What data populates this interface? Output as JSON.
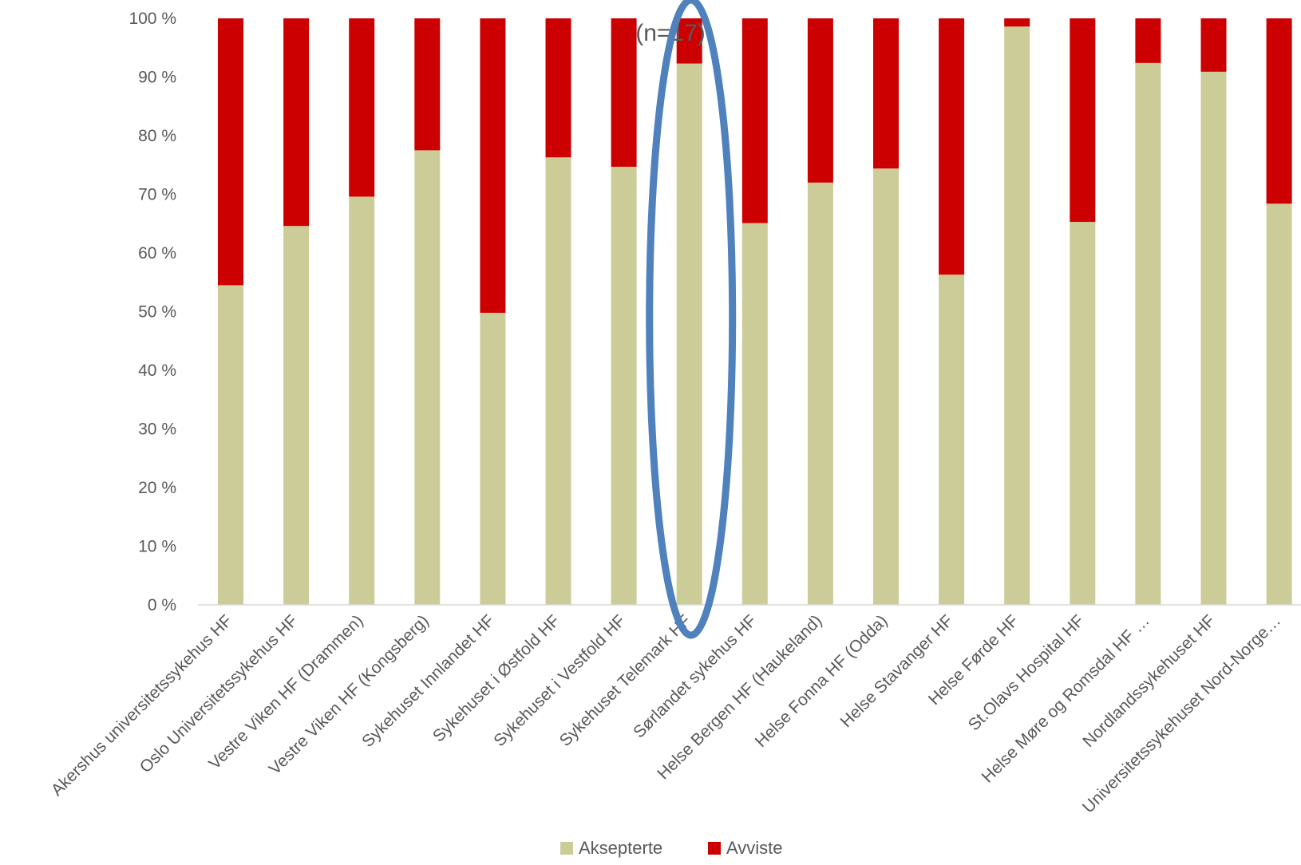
{
  "chart_data": {
    "type": "bar",
    "stacked": true,
    "percent_stacked": true,
    "subtitle": "(n=17)",
    "categories": [
      "Akershus universitetssykehus HF",
      "Oslo Universitetssykehus HF",
      "Vestre Viken HF (Drammen)",
      "Vestre Viken HF (Kongsberg)",
      "Sykehuset Innlandet HF",
      "Sykehuset i Østfold HF",
      "Sykehuset i Vestfold HF",
      "Sykehuset Telemark HF",
      "Sørlandet sykehus HF",
      "Helse Bergen HF (Haukeland)",
      "Helse Fonna HF (Odda)",
      "Helse Stavanger HF",
      "Helse Førde HF",
      "St.Olavs Hospital HF",
      "Helse Møre og Romsdal HF …",
      "Nordlandssykehuset HF",
      "Universitetssykehuset Nord-Norge…"
    ],
    "series": [
      {
        "name": "Aksepterte",
        "color": "#cccc99",
        "values": [
          54.5,
          64.6,
          69.6,
          77.5,
          49.8,
          76.3,
          74.7,
          92.3,
          65.1,
          72.0,
          74.4,
          56.3,
          98.6,
          65.3,
          92.4,
          90.9,
          68.4
        ]
      },
      {
        "name": "Avviste",
        "color": "#cc0000",
        "values": [
          45.5,
          35.4,
          30.4,
          22.5,
          50.2,
          23.7,
          25.3,
          7.7,
          34.9,
          28.0,
          25.6,
          43.7,
          1.4,
          34.7,
          7.6,
          9.1,
          31.6
        ]
      }
    ],
    "yticks": [
      "0 %",
      "10 %",
      "20 %",
      "30 %",
      "40 %",
      "50 %",
      "60 %",
      "70 %",
      "80 %",
      "90 %",
      "100 %"
    ],
    "ylim": [
      0,
      100
    ],
    "grid": false,
    "legend_position": "bottom",
    "highlight": {
      "category": "Sykehuset Telemark HF",
      "shape": "ellipse",
      "color": "#4f81bd"
    }
  }
}
